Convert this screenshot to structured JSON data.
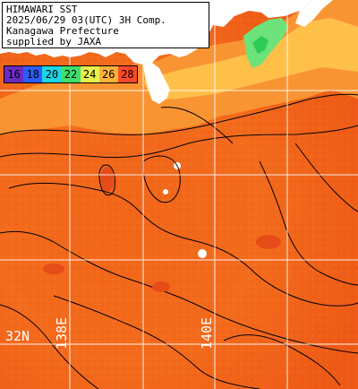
{
  "header": {
    "line1": "HIMAWARI SST",
    "line2": "2025/06/29 03(UTC) 3H Comp.",
    "line3": "Kanagawa Prefecture",
    "line4": "supplied by JAXA"
  },
  "legend": {
    "items": [
      {
        "label": "16",
        "color": "#6a2cc0"
      },
      {
        "label": "18",
        "color": "#2a5cff"
      },
      {
        "label": "20",
        "color": "#1ad6e6"
      },
      {
        "label": "22",
        "color": "#3fe06b"
      },
      {
        "label": "24",
        "color": "#e8f04a"
      },
      {
        "label": "26",
        "color": "#ffb23a"
      },
      {
        "label": "28",
        "color": "#ff4a2a"
      }
    ]
  },
  "grid": {
    "lat_label": "32N",
    "lon_labels": [
      "138E",
      "140E"
    ]
  },
  "colors": {
    "land": "#ffffff",
    "warm_sea": "#f36b1c",
    "hot_sea": "#e84a16",
    "cool_sea": "#ffae3d",
    "gridline": "#ffffff",
    "contour": "#000000"
  }
}
